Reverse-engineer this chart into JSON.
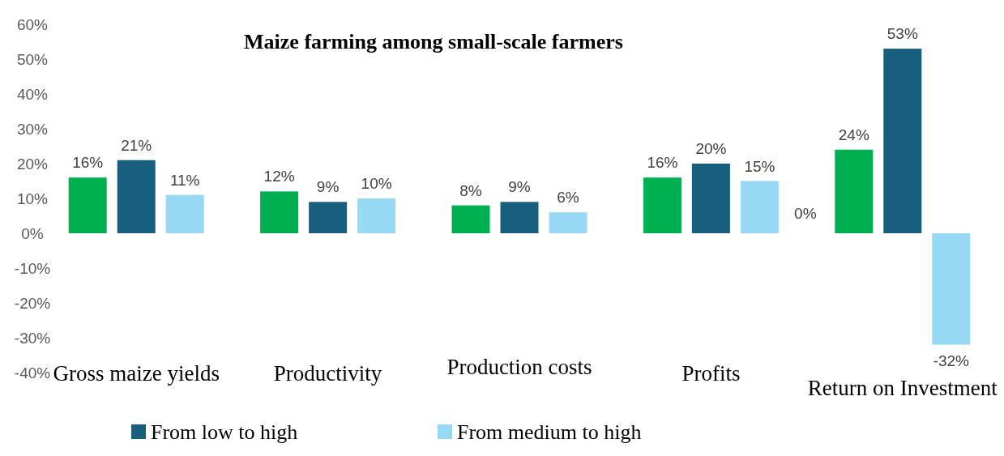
{
  "chart_data": {
    "type": "bar",
    "title": "Maize farming among small-scale farmers",
    "categories": [
      "Gross maize yields",
      "Productivity",
      "Production costs",
      "Profits",
      "Return on Investment"
    ],
    "series": [
      {
        "color": "#00b050",
        "values": [
          16,
          12,
          8,
          16,
          24
        ],
        "value_labels": [
          "16%",
          "12%",
          "8%",
          "16%",
          "24%"
        ]
      },
      {
        "name": "From low to high",
        "color": "#175e7f",
        "values": [
          21,
          9,
          9,
          20,
          53
        ],
        "value_labels": [
          "21%",
          "9%",
          "9%",
          "20%",
          "53%"
        ]
      },
      {
        "name": "From medium to high",
        "color": "#97d9f5",
        "values": [
          11,
          10,
          6,
          15,
          -32
        ],
        "value_labels": [
          "11%",
          "10%",
          "6%",
          "15%",
          "-32%"
        ]
      }
    ],
    "annotations": [
      "0%"
    ],
    "ylim": [
      -40,
      60
    ],
    "yticks": [
      {
        "value": -40,
        "label": "-40%"
      },
      {
        "value": -30,
        "label": "-30%"
      },
      {
        "value": -20,
        "label": "-20%"
      },
      {
        "value": -10,
        "label": "-10%"
      },
      {
        "value": 0,
        "label": "0%"
      },
      {
        "value": 10,
        "label": "10%"
      },
      {
        "value": 20,
        "label": "20%"
      },
      {
        "value": 30,
        "label": "30%"
      },
      {
        "value": 40,
        "label": "40%"
      },
      {
        "value": 50,
        "label": "50%"
      },
      {
        "value": 60,
        "label": "60%"
      }
    ],
    "grid": false,
    "legend": "bottom"
  }
}
